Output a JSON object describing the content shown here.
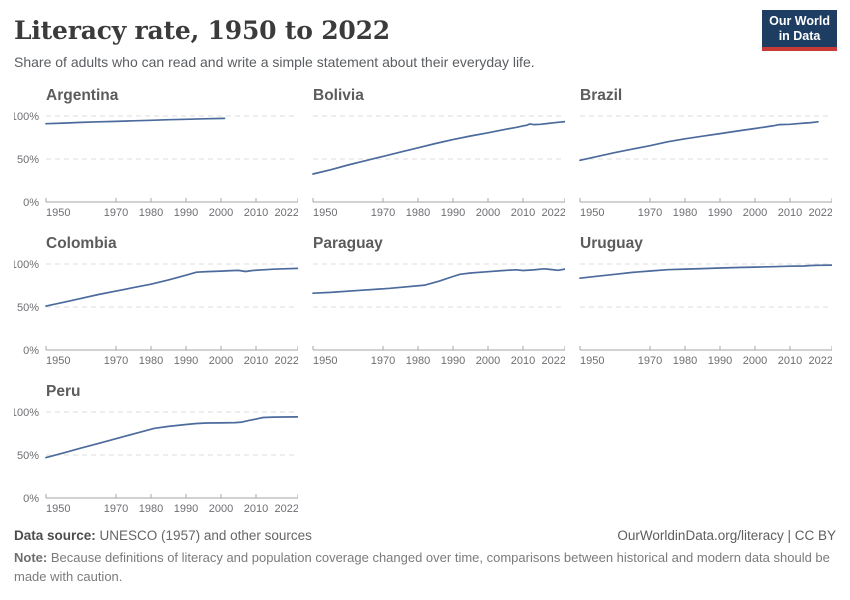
{
  "header": {
    "title": "Literacy rate, 1950 to 2022",
    "subtitle": "Share of adults who can read and write a simple statement about their everyday life."
  },
  "logo": {
    "line1": "Our World",
    "line2": "in Data"
  },
  "style": {
    "line_color": "#4c6a9c",
    "grid_color": "#dcdcdc",
    "axis_color": "#a6a6a6",
    "tick_label_color": "#6e6e73",
    "logo_bg": "#1d3d63",
    "logo_accent": "#c73a36"
  },
  "chart_data": [
    {
      "type": "line",
      "title": "Argentina",
      "xlabel": "",
      "ylabel": "",
      "xlim": [
        1950,
        2022
      ],
      "ylim": [
        0,
        100
      ],
      "xticks": [
        1950,
        1970,
        1980,
        1990,
        2000,
        2010,
        2022
      ],
      "yticks": [
        0,
        50,
        100
      ],
      "grid": true,
      "unit": "%",
      "x": [
        1950,
        1955,
        1960,
        1965,
        1970,
        1975,
        1980,
        1985,
        1990,
        1995,
        2001
      ],
      "y": [
        91.0,
        91.8,
        92.6,
        93.2,
        93.7,
        94.4,
        95.0,
        95.7,
        96.2,
        96.7,
        97.2
      ]
    },
    {
      "type": "line",
      "title": "Bolivia",
      "xlabel": "",
      "ylabel": "",
      "xlim": [
        1950,
        2022
      ],
      "ylim": [
        0,
        100
      ],
      "xticks": [
        1950,
        1970,
        1980,
        1990,
        2000,
        2010,
        2022
      ],
      "yticks": [
        0,
        50,
        100
      ],
      "grid": true,
      "unit": "%",
      "x": [
        1950,
        1955,
        1960,
        1965,
        1970,
        1975,
        1980,
        1985,
        1990,
        1995,
        2000,
        2005,
        2008,
        2010,
        2011,
        2012,
        2013,
        2015,
        2017,
        2019,
        2022
      ],
      "y": [
        32.5,
        37.5,
        43.0,
        48.0,
        53.0,
        58.0,
        63.0,
        68.0,
        72.5,
        76.8,
        80.5,
        84.5,
        86.8,
        88.5,
        89.2,
        90.8,
        90.0,
        90.4,
        91.3,
        92.2,
        93.5
      ]
    },
    {
      "type": "line",
      "title": "Brazil",
      "xlabel": "",
      "ylabel": "",
      "xlim": [
        1950,
        2022
      ],
      "ylim": [
        0,
        100
      ],
      "xticks": [
        1950,
        1970,
        1980,
        1990,
        2000,
        2010,
        2022
      ],
      "yticks": [
        0,
        50,
        100
      ],
      "grid": true,
      "unit": "%",
      "x": [
        1950,
        1955,
        1960,
        1965,
        1970,
        1975,
        1980,
        1985,
        1990,
        1995,
        2000,
        2005,
        2007,
        2010,
        2012,
        2014,
        2016,
        2018
      ],
      "y": [
        48.5,
        53.0,
        57.5,
        61.5,
        65.5,
        70.0,
        73.5,
        76.5,
        79.5,
        82.5,
        85.5,
        88.5,
        90.0,
        90.3,
        91.0,
        91.7,
        92.3,
        93.2
      ]
    },
    {
      "type": "line",
      "title": "Colombia",
      "xlabel": "",
      "ylabel": "",
      "xlim": [
        1950,
        2022
      ],
      "ylim": [
        0,
        100
      ],
      "xticks": [
        1950,
        1970,
        1980,
        1990,
        2000,
        2010,
        2022
      ],
      "yticks": [
        0,
        50,
        100
      ],
      "grid": true,
      "unit": "%",
      "x": [
        1950,
        1955,
        1960,
        1965,
        1970,
        1975,
        1980,
        1985,
        1990,
        1993,
        1996,
        2000,
        2003,
        2005,
        2007,
        2009,
        2012,
        2015,
        2018,
        2022
      ],
      "y": [
        51.0,
        55.5,
        60.0,
        64.5,
        68.5,
        72.5,
        76.5,
        81.5,
        87.0,
        90.5,
        91.2,
        91.7,
        92.3,
        92.6,
        91.3,
        92.5,
        93.2,
        93.9,
        94.4,
        94.9
      ]
    },
    {
      "type": "line",
      "title": "Paraguay",
      "xlabel": "",
      "ylabel": "",
      "xlim": [
        1950,
        2022
      ],
      "ylim": [
        0,
        100
      ],
      "xticks": [
        1950,
        1970,
        1980,
        1990,
        2000,
        2010,
        2022
      ],
      "yticks": [
        0,
        50,
        100
      ],
      "grid": true,
      "unit": "%",
      "x": [
        1950,
        1955,
        1962,
        1972,
        1982,
        1986,
        1990,
        1992,
        1995,
        2000,
        2004,
        2008,
        2010,
        2013,
        2016,
        2018,
        2020,
        2022
      ],
      "y": [
        66.0,
        67.0,
        69.0,
        71.8,
        75.5,
        80.0,
        85.5,
        88.0,
        89.5,
        91.0,
        92.3,
        93.3,
        92.4,
        93.1,
        94.4,
        93.6,
        92.7,
        94.1
      ]
    },
    {
      "type": "line",
      "title": "Uruguay",
      "xlabel": "",
      "ylabel": "",
      "xlim": [
        1950,
        2022
      ],
      "ylim": [
        0,
        100
      ],
      "xticks": [
        1950,
        1970,
        1980,
        1990,
        2000,
        2010,
        2022
      ],
      "yticks": [
        0,
        50,
        100
      ],
      "grid": true,
      "unit": "%",
      "x": [
        1950,
        1955,
        1960,
        1965,
        1970,
        1975,
        1980,
        1985,
        1990,
        1995,
        2000,
        2005,
        2010,
        2014,
        2016,
        2018,
        2022
      ],
      "y": [
        83.5,
        85.8,
        88.0,
        90.2,
        91.9,
        93.4,
        94.1,
        94.7,
        95.3,
        95.9,
        96.4,
        96.9,
        97.4,
        97.7,
        98.2,
        98.5,
        98.7
      ]
    },
    {
      "type": "line",
      "title": "Peru",
      "xlabel": "",
      "ylabel": "",
      "xlim": [
        1950,
        2022
      ],
      "ylim": [
        0,
        100
      ],
      "xticks": [
        1950,
        1970,
        1980,
        1990,
        2000,
        2010,
        2022
      ],
      "yticks": [
        0,
        50,
        100
      ],
      "grid": true,
      "unit": "%",
      "x": [
        1950,
        1955,
        1960,
        1965,
        1970,
        1975,
        1981,
        1985,
        1990,
        1993,
        1996,
        2000,
        2004,
        2006,
        2008,
        2010,
        2012,
        2015,
        2018,
        2022
      ],
      "y": [
        47.0,
        52.5,
        58.0,
        63.5,
        69.0,
        74.5,
        81.0,
        83.3,
        85.5,
        86.6,
        87.2,
        87.3,
        87.7,
        88.3,
        90.2,
        91.8,
        93.6,
        94.1,
        94.2,
        94.3
      ]
    }
  ],
  "footer": {
    "source_label": "Data source:",
    "source_value": "UNESCO (1957) and other sources",
    "link": "OurWorldinData.org/literacy | CC BY",
    "note_label": "Note:",
    "note_text": "Because definitions of literacy and population coverage changed over time, comparisons between historical and modern data should be made with caution."
  }
}
